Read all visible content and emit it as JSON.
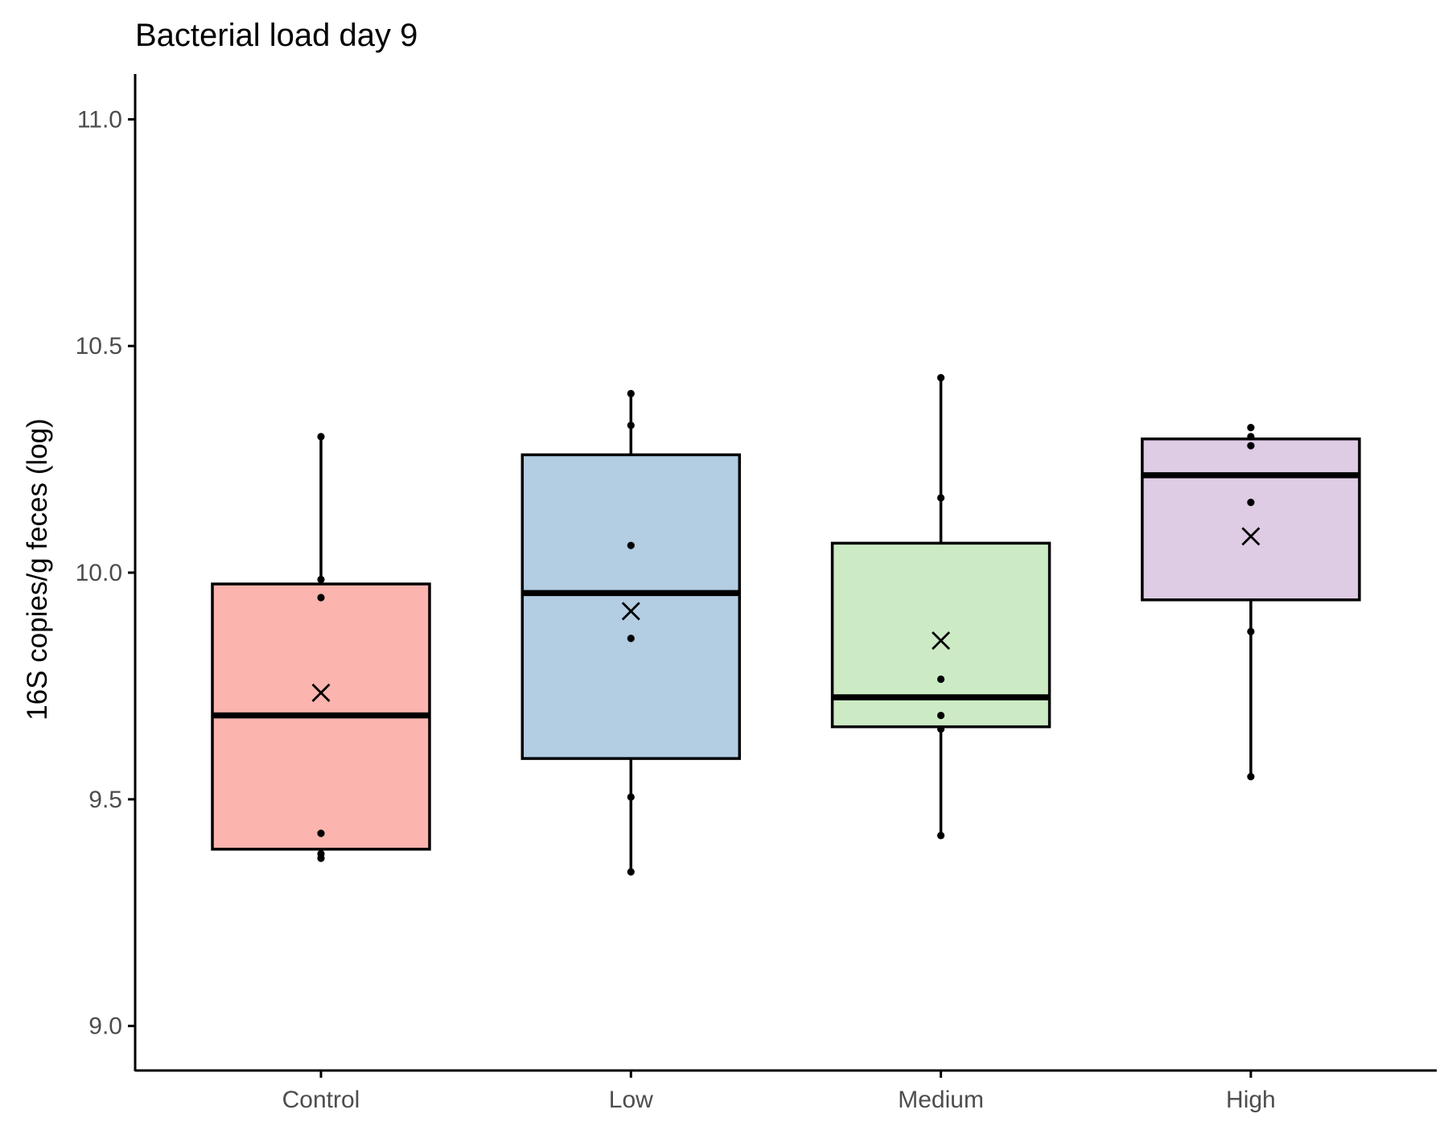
{
  "chart_data": {
    "type": "box",
    "title": "Bacterial load day 9",
    "xlabel": "",
    "ylabel": "16S copies/g feces (log)",
    "ylim": [
      8.9,
      11.1
    ],
    "yticks": [
      "9.0",
      "9.5",
      "10.0",
      "10.5",
      "11.0"
    ],
    "ytick_values": [
      9.0,
      9.5,
      10.0,
      10.5,
      11.0
    ],
    "grid": false,
    "legend": "none",
    "categories": [
      "Control",
      "Low",
      "Medium",
      "High"
    ],
    "groups": [
      {
        "category": "Control",
        "color": "#FBB4AE",
        "q1": 9.39,
        "median": 9.685,
        "q3": 9.975,
        "whisker_low": 9.39,
        "whisker_high": 10.3,
        "mean": 9.735,
        "points": [
          10.3,
          9.985,
          9.945,
          9.425,
          9.38,
          9.37
        ]
      },
      {
        "category": "Low",
        "color": "#B3CDE3",
        "q1": 9.59,
        "median": 9.955,
        "q3": 10.26,
        "whisker_low": 9.34,
        "whisker_high": 10.395,
        "mean": 9.915,
        "points": [
          10.395,
          10.325,
          10.06,
          9.855,
          9.505,
          9.34
        ]
      },
      {
        "category": "Medium",
        "color": "#CCEBC5",
        "q1": 9.66,
        "median": 9.725,
        "q3": 10.065,
        "whisker_low": 9.42,
        "whisker_high": 10.43,
        "mean": 9.85,
        "points": [
          10.43,
          10.165,
          9.765,
          9.685,
          9.655,
          9.42
        ]
      },
      {
        "category": "High",
        "color": "#DECBE4",
        "q1": 9.94,
        "median": 10.215,
        "q3": 10.295,
        "whisker_low": 9.55,
        "whisker_high": 10.295,
        "mean": 10.08,
        "points": [
          10.32,
          10.3,
          10.28,
          10.155,
          9.87,
          9.55
        ]
      }
    ]
  }
}
